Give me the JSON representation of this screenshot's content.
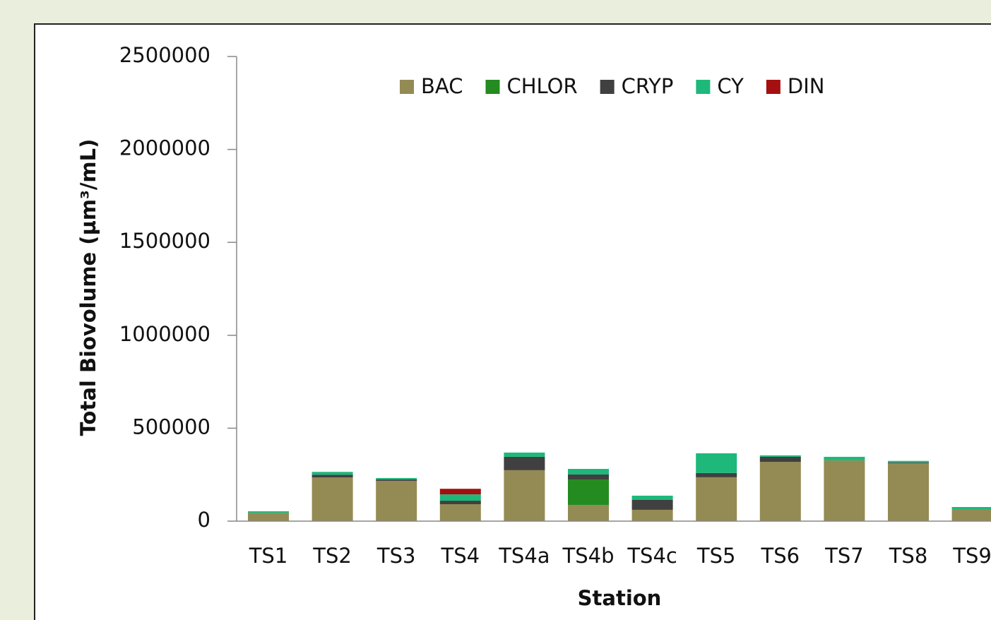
{
  "chart_data": {
    "type": "stacked_bar",
    "x_label": "Station",
    "y_label": "Total Biovolume (µm³/mL)",
    "categories": [
      "TS1",
      "TS2",
      "TS3",
      "TS4",
      "TS4a",
      "TS4b",
      "TS4c",
      "TS5",
      "TS6",
      "TS7",
      "TS8",
      "TS9"
    ],
    "series": [
      {
        "name": "BAC",
        "color": "#948a54",
        "values": [
          45000,
          235000,
          217000,
          91000,
          274000,
          87000,
          61000,
          236000,
          319000,
          327000,
          312000,
          61000
        ]
      },
      {
        "name": "CHLOR",
        "color": "#238b1f",
        "values": [
          0,
          0,
          0,
          0,
          0,
          137000,
          0,
          0,
          0,
          0,
          0,
          0
        ]
      },
      {
        "name": "CRYP",
        "color": "#404040",
        "values": [
          0,
          15000,
          8000,
          19000,
          72000,
          27000,
          53000,
          23000,
          27000,
          0,
          4000,
          0
        ]
      },
      {
        "name": "CY",
        "color": "#1db87a",
        "values": [
          8000,
          15000,
          7000,
          34000,
          23000,
          30000,
          23000,
          106000,
          8000,
          19000,
          8000,
          15000
        ]
      },
      {
        "name": "DIN",
        "color": "#a50f0f",
        "values": [
          0,
          0,
          0,
          30000,
          0,
          0,
          0,
          0,
          0,
          0,
          0,
          0
        ]
      }
    ],
    "ylim": [
      0,
      2500000
    ],
    "yticks": [
      0,
      500000,
      1000000,
      1500000,
      2000000,
      2500000
    ],
    "legend": "top"
  }
}
